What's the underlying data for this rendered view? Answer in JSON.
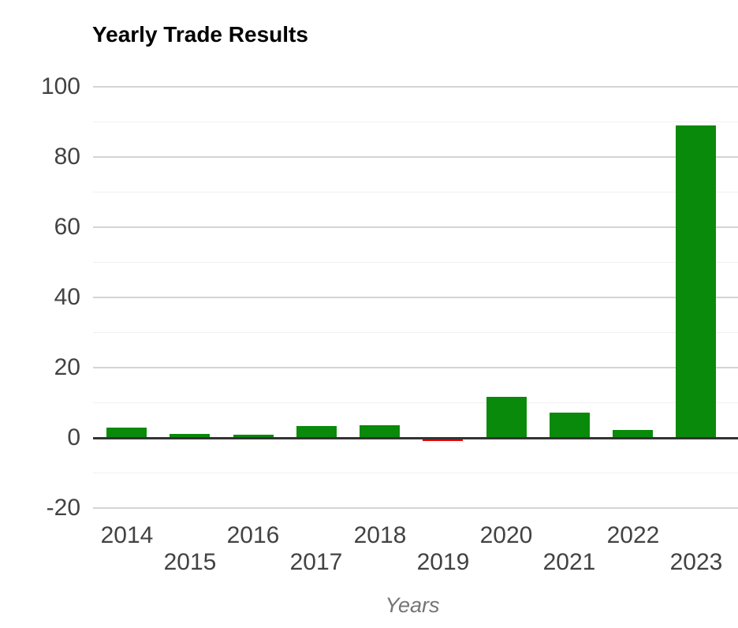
{
  "chart_data": {
    "type": "bar",
    "title": "Yearly Trade Results",
    "xlabel": "Years",
    "ylabel": "",
    "categories": [
      "2014",
      "2015",
      "2016",
      "2017",
      "2018",
      "2019",
      "2020",
      "2021",
      "2022",
      "2023"
    ],
    "values": [
      3.0,
      1.2,
      1.0,
      3.4,
      3.5,
      -1.0,
      11.6,
      7.3,
      2.3,
      89
    ],
    "ylim": [
      -20,
      100
    ],
    "y_major_ticks": [
      100,
      80,
      60,
      40,
      20,
      0,
      -20
    ],
    "y_minor_ticks": [
      90,
      70,
      50,
      30,
      10,
      -10
    ],
    "grid": true,
    "legend_position": "none",
    "x_label_layout": "staggered-two-rows",
    "colors": {
      "positive_bar": "#0a8a0a",
      "negative_bar": "#ee0000",
      "title": "#000000",
      "tick_label": "#424242",
      "axis_title": "#757575",
      "major_grid": "#d4d4d4",
      "minor_grid": "#f0f0f0",
      "zero_line": "#333333",
      "background": "#ffffff"
    }
  }
}
